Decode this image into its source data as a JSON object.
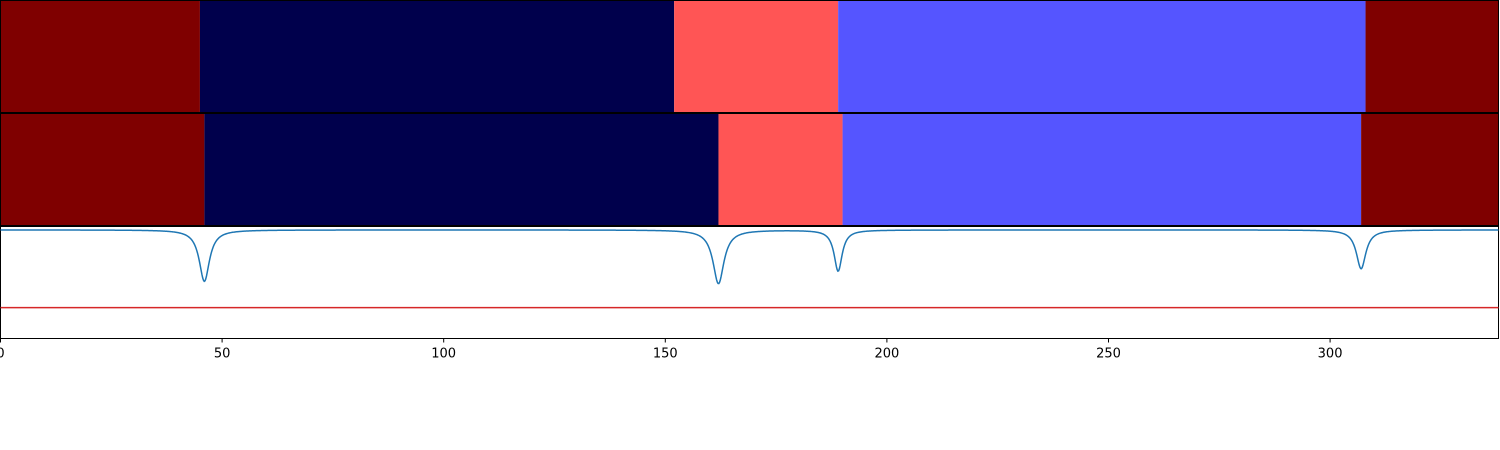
{
  "chart_data": [
    {
      "type": "segments",
      "row": "top",
      "segments": [
        {
          "start": 0,
          "end": 45,
          "color": "#7f0000"
        },
        {
          "start": 45,
          "end": 152,
          "color": "#00004c"
        },
        {
          "start": 152,
          "end": 189,
          "color": "#ff5555"
        },
        {
          "start": 189,
          "end": 308,
          "color": "#5555ff"
        },
        {
          "start": 308,
          "end": 338,
          "color": "#7f0000"
        }
      ]
    },
    {
      "type": "segments",
      "row": "middle",
      "segments": [
        {
          "start": 0,
          "end": 46,
          "color": "#7f0000"
        },
        {
          "start": 46,
          "end": 162,
          "color": "#00004c"
        },
        {
          "start": 162,
          "end": 190,
          "color": "#ff5555"
        },
        {
          "start": 190,
          "end": 307,
          "color": "#5555ff"
        },
        {
          "start": 307,
          "end": 338,
          "color": "#7f0000"
        }
      ]
    },
    {
      "type": "line",
      "row": "bottom",
      "xlim": [
        0,
        338
      ],
      "ylim": [
        -0.95,
        0.03
      ],
      "xticks": [
        0,
        50,
        100,
        150,
        200,
        250,
        300
      ],
      "grid": false,
      "series": [
        {
          "color": "#1f77b4",
          "baseline": 0,
          "dips": [
            {
              "x": 46,
              "depth": 0.45,
              "width": 1.4
            },
            {
              "x": 162,
              "depth": 0.47,
              "width": 1.5
            },
            {
              "x": 189,
              "depth": 0.36,
              "width": 1.1
            },
            {
              "x": 307,
              "depth": 0.34,
              "width": 1.3
            }
          ]
        }
      ],
      "hline": {
        "y": -0.68,
        "color": "#d62728"
      }
    }
  ]
}
